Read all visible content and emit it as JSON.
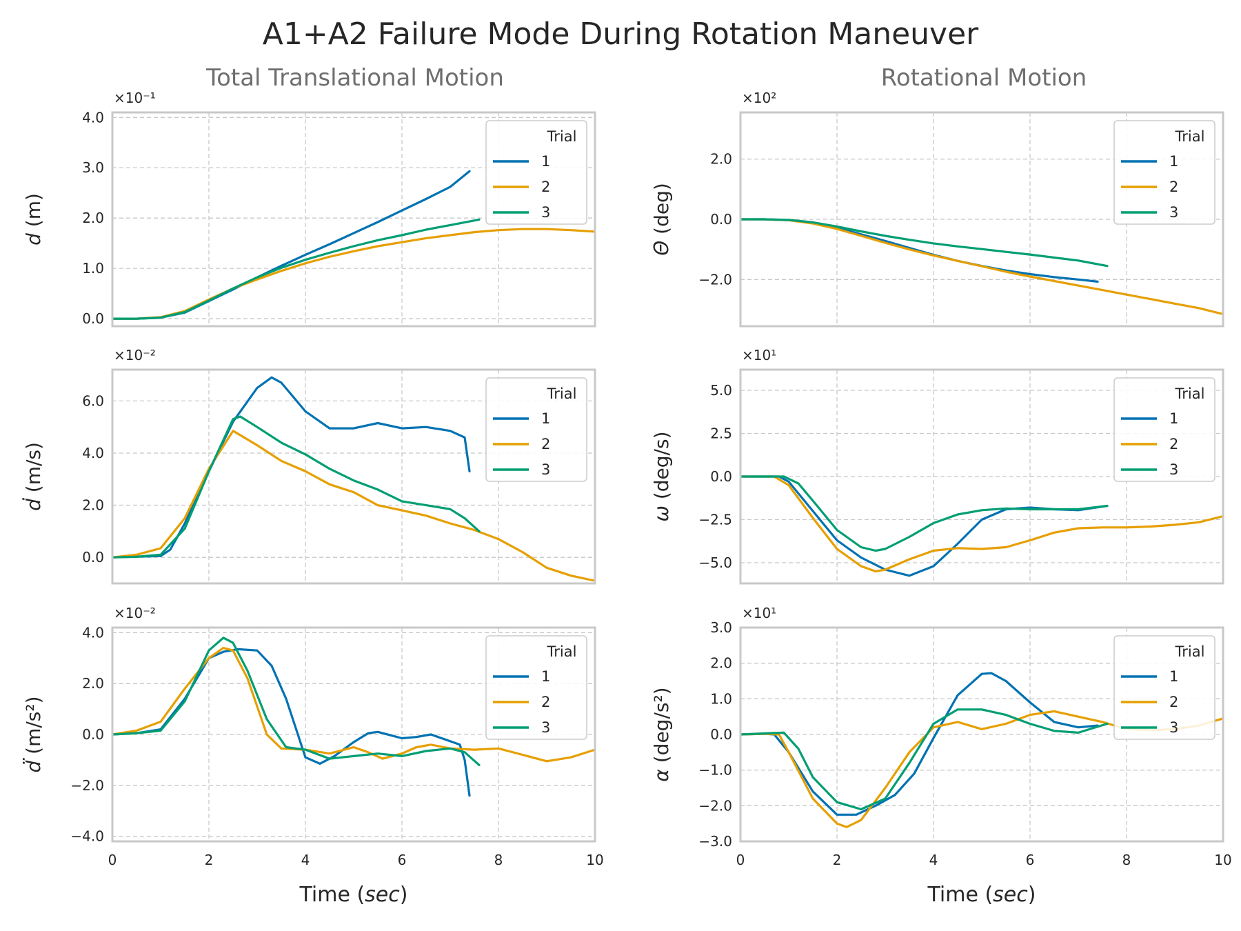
{
  "title": "A1+A2 Failure Mode During Rotation Maneuver",
  "column_titles": [
    "Total Translational Motion",
    "Rotational Motion"
  ],
  "colors": {
    "1": "#0072b2",
    "2": "#e69f00",
    "3": "#009e73"
  },
  "chart_data": [
    {
      "type": "line",
      "column": 0,
      "row": 0,
      "ylabel": "d (m)",
      "multiplier": "×10⁻¹",
      "xlim": [
        0,
        10
      ],
      "ylim": [
        -0.15,
        4.1
      ],
      "yticks": [
        0,
        1,
        2,
        3,
        4
      ],
      "ytick_labels": [
        "0.0",
        "1.0",
        "2.0",
        "3.0",
        "4.0"
      ],
      "xticks": [
        0,
        2,
        4,
        6,
        8,
        10
      ],
      "xtick_labels": [
        "0",
        "2",
        "4",
        "6",
        "8",
        "10"
      ],
      "show_xticklabels": false,
      "xlabel": "",
      "legend": {
        "title": "Trial",
        "position": "upper right"
      },
      "series": [
        {
          "name": "1",
          "x": [
            0,
            0.5,
            1,
            1.5,
            2,
            2.5,
            3,
            3.5,
            4,
            4.5,
            5,
            5.5,
            6,
            6.5,
            7,
            7.4
          ],
          "y": [
            0,
            0,
            0.02,
            0.12,
            0.35,
            0.58,
            0.82,
            1.05,
            1.27,
            1.48,
            1.7,
            1.92,
            2.15,
            2.38,
            2.62,
            2.93
          ]
        },
        {
          "name": "2",
          "x": [
            0,
            0.5,
            1,
            1.5,
            2,
            2.5,
            3,
            3.5,
            4,
            4.5,
            5,
            5.5,
            6,
            6.5,
            7,
            7.5,
            8,
            8.5,
            9,
            9.5,
            10
          ],
          "y": [
            0,
            0,
            0.03,
            0.15,
            0.38,
            0.6,
            0.78,
            0.95,
            1.1,
            1.23,
            1.34,
            1.44,
            1.52,
            1.6,
            1.66,
            1.72,
            1.76,
            1.78,
            1.78,
            1.76,
            1.73
          ]
        },
        {
          "name": "3",
          "x": [
            0,
            0.5,
            1,
            1.5,
            2,
            2.5,
            3,
            3.5,
            4,
            4.5,
            5,
            5.5,
            6,
            6.5,
            7,
            7.6
          ],
          "y": [
            0,
            0,
            0.02,
            0.13,
            0.36,
            0.6,
            0.82,
            1.01,
            1.17,
            1.31,
            1.44,
            1.56,
            1.66,
            1.77,
            1.86,
            1.97
          ]
        }
      ]
    },
    {
      "type": "line",
      "column": 1,
      "row": 0,
      "ylabel": "Θ (deg)",
      "multiplier": "×10²",
      "xlim": [
        0,
        10
      ],
      "ylim": [
        -3.55,
        3.55
      ],
      "yticks": [
        -2,
        0,
        2
      ],
      "ytick_labels": [
        "−2.0",
        "0.0",
        "2.0"
      ],
      "xticks": [
        0,
        2,
        4,
        6,
        8,
        10
      ],
      "xtick_labels": [
        "0",
        "2",
        "4",
        "6",
        "8",
        "10"
      ],
      "show_xticklabels": false,
      "xlabel": "",
      "legend": {
        "title": "Trial",
        "position": "upper right"
      },
      "series": [
        {
          "name": "1",
          "x": [
            0,
            0.5,
            1,
            1.5,
            2,
            2.5,
            3,
            3.5,
            4,
            4.5,
            5,
            5.5,
            6,
            6.5,
            7,
            7.4
          ],
          "y": [
            0,
            0,
            -0.03,
            -0.12,
            -0.28,
            -0.5,
            -0.72,
            -0.95,
            -1.18,
            -1.38,
            -1.55,
            -1.7,
            -1.82,
            -1.92,
            -2.0,
            -2.07
          ]
        },
        {
          "name": "2",
          "x": [
            0,
            0.5,
            1,
            1.5,
            2,
            2.5,
            3,
            3.5,
            4,
            4.5,
            5,
            5.5,
            6,
            6.5,
            7,
            7.5,
            8,
            8.5,
            9,
            9.5,
            10
          ],
          "y": [
            0,
            0,
            -0.03,
            -0.14,
            -0.32,
            -0.55,
            -0.78,
            -1.0,
            -1.2,
            -1.38,
            -1.56,
            -1.74,
            -1.9,
            -2.05,
            -2.2,
            -2.35,
            -2.5,
            -2.65,
            -2.8,
            -2.95,
            -3.15
          ]
        },
        {
          "name": "3",
          "x": [
            0,
            0.5,
            1,
            1.5,
            2,
            2.5,
            3,
            3.5,
            4,
            4.5,
            5,
            5.5,
            6,
            6.5,
            7,
            7.6
          ],
          "y": [
            0,
            0,
            -0.02,
            -0.1,
            -0.24,
            -0.4,
            -0.55,
            -0.68,
            -0.8,
            -0.9,
            -0.99,
            -1.08,
            -1.17,
            -1.27,
            -1.37,
            -1.55
          ]
        }
      ]
    },
    {
      "type": "line",
      "column": 0,
      "row": 1,
      "ylabel": "ḋ (m/s)",
      "multiplier": "×10⁻²",
      "xlim": [
        0,
        10
      ],
      "ylim": [
        -1.0,
        7.2
      ],
      "yticks": [
        0,
        2,
        4,
        6
      ],
      "ytick_labels": [
        "0.0",
        "2.0",
        "4.0",
        "6.0"
      ],
      "xticks": [
        0,
        2,
        4,
        6,
        8,
        10
      ],
      "xtick_labels": [
        "0",
        "2",
        "4",
        "6",
        "8",
        "10"
      ],
      "show_xticklabels": false,
      "xlabel": "",
      "legend": {
        "title": "Trial",
        "position": "upper right"
      },
      "series": [
        {
          "name": "1",
          "x": [
            0,
            0.5,
            1,
            1.2,
            1.5,
            2,
            2.5,
            3,
            3.3,
            3.5,
            4,
            4.5,
            5,
            5.5,
            6,
            6.5,
            7,
            7.3,
            7.4
          ],
          "y": [
            0,
            0.03,
            0.05,
            0.3,
            1.3,
            3.3,
            5.2,
            6.5,
            6.9,
            6.7,
            5.6,
            4.95,
            4.95,
            5.15,
            4.95,
            5.0,
            4.85,
            4.6,
            3.3
          ]
        },
        {
          "name": "2",
          "x": [
            0,
            0.5,
            1,
            1.5,
            2,
            2.5,
            3,
            3.5,
            4,
            4.5,
            5,
            5.5,
            6,
            6.5,
            7,
            7.5,
            8,
            8.5,
            9,
            9.5,
            10
          ],
          "y": [
            0,
            0.1,
            0.35,
            1.5,
            3.4,
            4.85,
            4.3,
            3.7,
            3.3,
            2.8,
            2.5,
            2.0,
            1.8,
            1.6,
            1.3,
            1.05,
            0.7,
            0.2,
            -0.4,
            -0.7,
            -0.9
          ]
        },
        {
          "name": "3",
          "x": [
            0,
            0.5,
            1,
            1.5,
            2,
            2.5,
            2.65,
            3,
            3.5,
            4,
            4.5,
            5,
            5.5,
            6,
            6.5,
            7,
            7.3,
            7.6
          ],
          "y": [
            0,
            0.02,
            0.1,
            1.1,
            3.3,
            5.3,
            5.4,
            5.0,
            4.4,
            3.95,
            3.4,
            2.95,
            2.6,
            2.15,
            2.0,
            1.85,
            1.5,
            1.0
          ]
        }
      ]
    },
    {
      "type": "line",
      "column": 1,
      "row": 1,
      "ylabel": "ω (deg/s)",
      "multiplier": "×10¹",
      "xlim": [
        0,
        10
      ],
      "ylim": [
        -6.2,
        6.2
      ],
      "yticks": [
        -5,
        -2.5,
        0,
        2.5,
        5
      ],
      "ytick_labels": [
        "−5.0",
        "−2.5",
        "0.0",
        "2.5",
        "5.0"
      ],
      "xticks": [
        0,
        2,
        4,
        6,
        8,
        10
      ],
      "xtick_labels": [
        "0",
        "2",
        "4",
        "6",
        "8",
        "10"
      ],
      "show_xticklabels": false,
      "xlabel": "",
      "legend": {
        "title": "Trial",
        "position": "upper right"
      },
      "series": [
        {
          "name": "1",
          "x": [
            0,
            0.5,
            0.8,
            1,
            1.5,
            2,
            2.5,
            3,
            3.5,
            4,
            4.5,
            5,
            5.5,
            6,
            6.5,
            7,
            7.6
          ],
          "y": [
            0,
            0,
            0,
            -0.3,
            -2.0,
            -3.7,
            -4.7,
            -5.4,
            -5.75,
            -5.2,
            -3.9,
            -2.5,
            -1.9,
            -1.8,
            -1.9,
            -1.95,
            -1.7
          ]
        },
        {
          "name": "2",
          "x": [
            0,
            0.5,
            0.7,
            1,
            1.5,
            2,
            2.5,
            2.8,
            3,
            3.5,
            4,
            4.5,
            5,
            5.5,
            6,
            6.5,
            7,
            7.5,
            8,
            8.5,
            9,
            9.5,
            10
          ],
          "y": [
            0,
            0,
            0,
            -0.5,
            -2.4,
            -4.2,
            -5.2,
            -5.5,
            -5.4,
            -4.8,
            -4.3,
            -4.15,
            -4.2,
            -4.1,
            -3.7,
            -3.25,
            -3.0,
            -2.95,
            -2.95,
            -2.9,
            -2.8,
            -2.65,
            -2.3
          ]
        },
        {
          "name": "3",
          "x": [
            0,
            0.5,
            0.9,
            1.2,
            1.5,
            2,
            2.5,
            2.8,
            3,
            3.5,
            4,
            4.5,
            5,
            5.5,
            6,
            6.5,
            7,
            7.6
          ],
          "y": [
            0,
            0,
            0,
            -0.4,
            -1.4,
            -3.1,
            -4.1,
            -4.3,
            -4.2,
            -3.5,
            -2.7,
            -2.2,
            -1.95,
            -1.85,
            -1.9,
            -1.9,
            -1.9,
            -1.7
          ]
        }
      ]
    },
    {
      "type": "line",
      "column": 0,
      "row": 2,
      "ylabel": "d̈ (m/s²)",
      "multiplier": "×10⁻²",
      "xlim": [
        0,
        10
      ],
      "ylim": [
        -4.2,
        4.2
      ],
      "yticks": [
        -4,
        -2,
        0,
        2,
        4
      ],
      "ytick_labels": [
        "−4.0",
        "−2.0",
        "0.0",
        "2.0",
        "4.0"
      ],
      "xticks": [
        0,
        2,
        4,
        6,
        8,
        10
      ],
      "xtick_labels": [
        "0",
        "2",
        "4",
        "6",
        "8",
        "10"
      ],
      "show_xticklabels": true,
      "xlabel": "Time (sec)",
      "legend": {
        "title": "Trial",
        "position": "upper right"
      },
      "series": [
        {
          "name": "1",
          "x": [
            0,
            0.5,
            1,
            1.5,
            2,
            2.3,
            2.6,
            3,
            3.3,
            3.6,
            4,
            4.3,
            4.6,
            5,
            5.3,
            5.5,
            5.8,
            6,
            6.3,
            6.6,
            6.9,
            7.2,
            7.3,
            7.4
          ],
          "y": [
            0,
            0.05,
            0.2,
            1.4,
            3.0,
            3.25,
            3.35,
            3.3,
            2.7,
            1.4,
            -0.9,
            -1.15,
            -0.85,
            -0.3,
            0.05,
            0.1,
            -0.05,
            -0.15,
            -0.1,
            0.0,
            -0.2,
            -0.4,
            -1.0,
            -2.4
          ]
        },
        {
          "name": "2",
          "x": [
            0,
            0.5,
            1,
            1.5,
            2,
            2.3,
            2.5,
            2.8,
            3.2,
            3.5,
            4,
            4.5,
            5,
            5.3,
            5.6,
            6,
            6.3,
            6.6,
            7,
            7.5,
            8,
            8.5,
            9,
            9.5,
            10
          ],
          "y": [
            0,
            0.15,
            0.5,
            1.8,
            3.0,
            3.4,
            3.3,
            2.2,
            0.0,
            -0.55,
            -0.6,
            -0.75,
            -0.5,
            -0.7,
            -0.95,
            -0.75,
            -0.5,
            -0.4,
            -0.55,
            -0.6,
            -0.55,
            -0.8,
            -1.05,
            -0.9,
            -0.6
          ]
        },
        {
          "name": "3",
          "x": [
            0,
            0.5,
            1,
            1.5,
            2,
            2.3,
            2.5,
            2.8,
            3.2,
            3.6,
            4,
            4.5,
            5,
            5.5,
            6,
            6.5,
            7,
            7.3,
            7.6
          ],
          "y": [
            0,
            0.05,
            0.15,
            1.3,
            3.3,
            3.8,
            3.6,
            2.5,
            0.6,
            -0.5,
            -0.6,
            -0.95,
            -0.85,
            -0.75,
            -0.85,
            -0.65,
            -0.55,
            -0.7,
            -1.2
          ]
        }
      ]
    },
    {
      "type": "line",
      "column": 1,
      "row": 2,
      "ylabel": "α (deg/s²)",
      "multiplier": "×10¹",
      "xlim": [
        0,
        10
      ],
      "ylim": [
        -3.0,
        3.0
      ],
      "yticks": [
        -3,
        -2,
        -1,
        0,
        1,
        2,
        3
      ],
      "ytick_labels": [
        "−3.0",
        "−2.0",
        "−1.0",
        "0.0",
        "1.0",
        "2.0",
        "3.0"
      ],
      "xticks": [
        0,
        2,
        4,
        6,
        8,
        10
      ],
      "xtick_labels": [
        "0",
        "2",
        "4",
        "6",
        "8",
        "10"
      ],
      "show_xticklabels": true,
      "xlabel": "Time (sec)",
      "legend": {
        "title": "Trial",
        "position": "upper right"
      },
      "series": [
        {
          "name": "1",
          "x": [
            0,
            0.5,
            0.7,
            1,
            1.5,
            2,
            2.4,
            2.8,
            3.2,
            3.6,
            4,
            4.5,
            5,
            5.2,
            5.5,
            6,
            6.5,
            7,
            7.4
          ],
          "y": [
            0,
            0.02,
            0,
            -0.5,
            -1.6,
            -2.25,
            -2.25,
            -2.0,
            -1.7,
            -1.1,
            -0.1,
            1.1,
            1.7,
            1.72,
            1.5,
            0.9,
            0.35,
            0.2,
            0.25
          ]
        },
        {
          "name": "2",
          "x": [
            0,
            0.5,
            0.8,
            1,
            1.5,
            2,
            2.2,
            2.5,
            3,
            3.5,
            4,
            4.5,
            5,
            5.5,
            6,
            6.5,
            7,
            7.5,
            8,
            8.5,
            9,
            9.5,
            10
          ],
          "y": [
            0,
            0.02,
            0,
            -0.5,
            -1.8,
            -2.5,
            -2.6,
            -2.4,
            -1.5,
            -0.5,
            0.2,
            0.35,
            0.15,
            0.3,
            0.55,
            0.65,
            0.5,
            0.35,
            0.15,
            0.12,
            0.15,
            0.25,
            0.45
          ]
        },
        {
          "name": "3",
          "x": [
            0,
            0.5,
            0.9,
            1.2,
            1.5,
            2,
            2.5,
            3,
            3.5,
            4,
            4.5,
            5,
            5.5,
            6,
            6.5,
            7,
            7.6
          ],
          "y": [
            0,
            0.03,
            0.05,
            -0.4,
            -1.2,
            -1.9,
            -2.1,
            -1.8,
            -0.8,
            0.3,
            0.7,
            0.7,
            0.55,
            0.3,
            0.1,
            0.05,
            0.3
          ]
        }
      ]
    }
  ]
}
